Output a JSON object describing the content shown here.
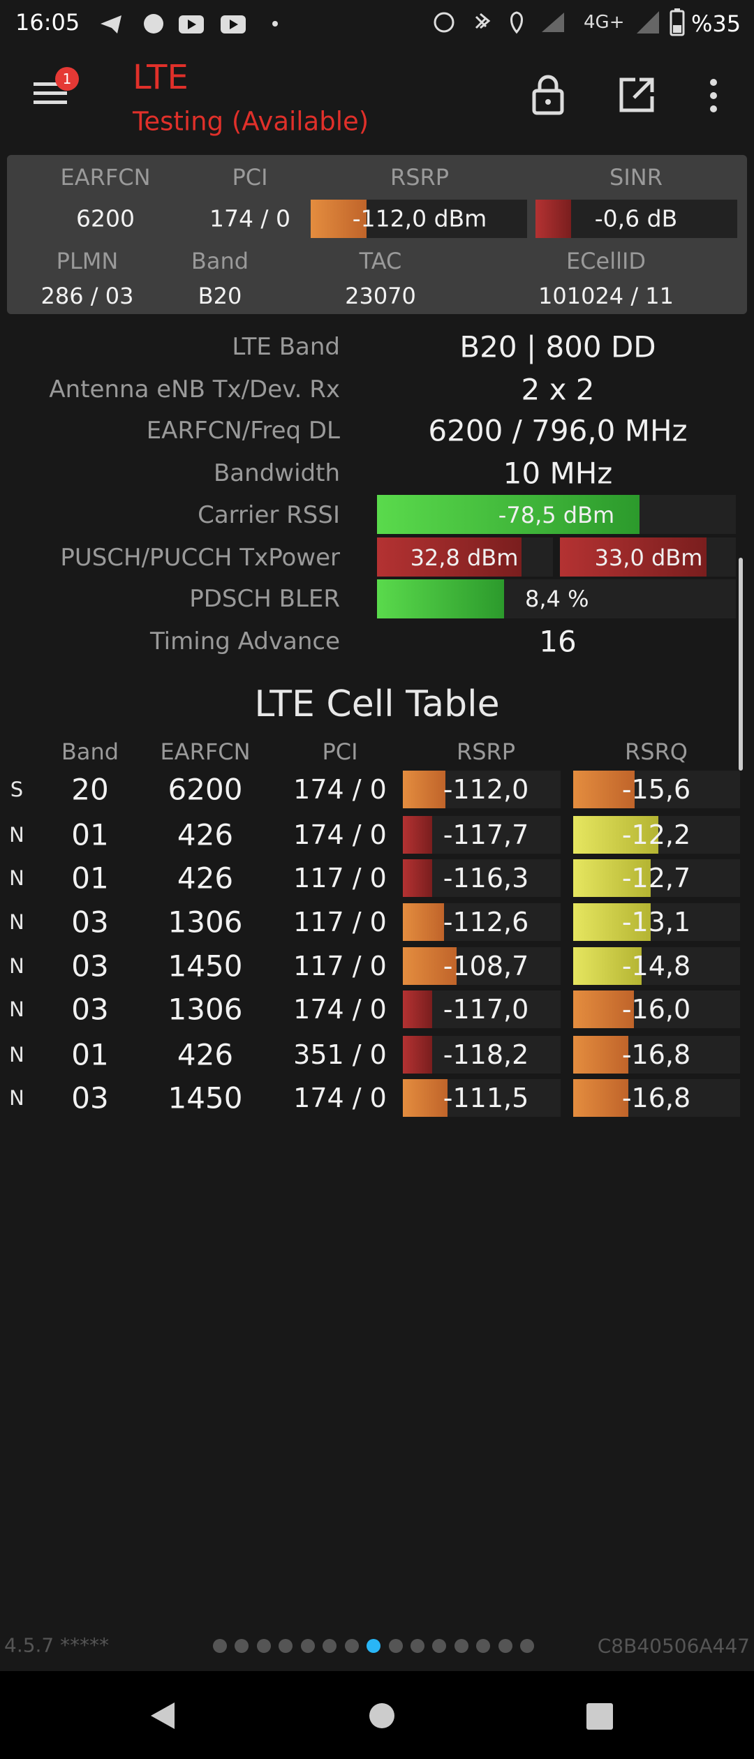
{
  "status_bar": {
    "time": "16:05",
    "network": "4G+",
    "battery": "%35"
  },
  "header": {
    "title": "LTE",
    "subtitle": "Testing (Available)",
    "badge": "1"
  },
  "summary": {
    "headers_1": [
      "EARFCN",
      "PCI",
      "RSRP",
      "SINR"
    ],
    "values_1": [
      "6200",
      "174 / 0",
      "-112,0 dBm",
      "-0,6 dB"
    ],
    "headers_2": [
      "PLMN",
      "Band",
      "TAC",
      "ECellID"
    ],
    "values_2": [
      "286 / 03",
      "B20",
      "23070",
      "101024 / 11"
    ]
  },
  "details": [
    {
      "label": "LTE Band",
      "values": [
        "B20 | 800 DD"
      ]
    },
    {
      "label": "Antenna eNB Tx/Dev. Rx",
      "values": [
        "2 x 2"
      ]
    },
    {
      "label": "EARFCN/Freq DL",
      "values": [
        "6200 / 796,0 MHz"
      ]
    },
    {
      "label": "Bandwidth",
      "values": [
        "10 MHz"
      ]
    },
    {
      "label": "Carrier RSSI",
      "values": [
        "-78,5 dBm"
      ]
    },
    {
      "label": "PUSCH/PUCCH TxPower",
      "values": [
        "32,8 dBm",
        "33,0 dBm"
      ]
    },
    {
      "label": "PDSCH BLER",
      "values": [
        "8,4 %"
      ]
    },
    {
      "label": "Timing Advance",
      "values": [
        "16"
      ]
    }
  ],
  "cell_table": {
    "title": "LTE Cell Table",
    "headers": [
      "Band",
      "EARFCN",
      "PCI",
      "RSRP",
      "RSRQ"
    ],
    "rows": [
      [
        "S",
        "20",
        "6200",
        "174 / 0",
        "-112,0",
        "-15,6"
      ],
      [
        "N",
        "01",
        "426",
        "174 / 0",
        "-117,7",
        "-12,2"
      ],
      [
        "N",
        "01",
        "426",
        "117 / 0",
        "-116,3",
        "-12,7"
      ],
      [
        "N",
        "03",
        "1306",
        "117 / 0",
        "-112,6",
        "-13,1"
      ],
      [
        "N",
        "03",
        "1450",
        "117 / 0",
        "-108,7",
        "-14,8"
      ],
      [
        "N",
        "03",
        "1306",
        "174 / 0",
        "-117,0",
        "-16,0"
      ],
      [
        "N",
        "01",
        "426",
        "351 / 0",
        "-118,2",
        "-16,8"
      ],
      [
        "N",
        "03",
        "1450",
        "174 / 0",
        "-111,5",
        "-16,8"
      ]
    ]
  },
  "footer": {
    "version": "4.5.7 *****",
    "device_id": "C8B40506A447"
  }
}
